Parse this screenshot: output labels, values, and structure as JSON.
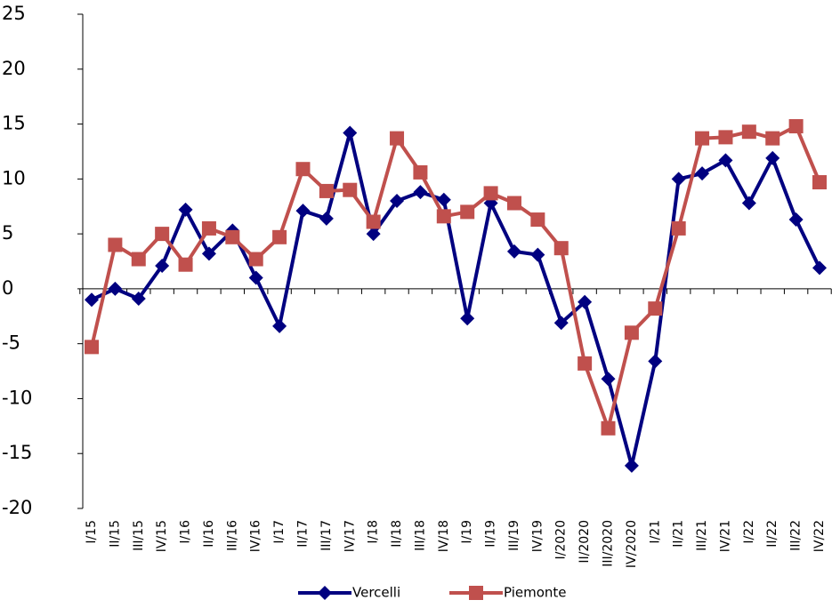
{
  "chart_data": {
    "type": "line",
    "categories": [
      "I/15",
      "II/15",
      "III/15",
      "IV/15",
      "I/16",
      "II/16",
      "III/16",
      "IV/16",
      "I/17",
      "II/17",
      "III/17",
      "IV/17",
      "I/18",
      "II/18",
      "III/18",
      "IV/18",
      "I/19",
      "II/19",
      "III/19",
      "IV/19",
      "I/2020",
      "II/2020",
      "III/2020",
      "IV/2020",
      "I/21",
      "II/21",
      "III/21",
      "IV/21",
      "I/22",
      "II/22",
      "III/22",
      "IV/22"
    ],
    "series": [
      {
        "name": "Vercelli",
        "color": "#000080",
        "marker": "diamond",
        "values": [
          -1.0,
          0.0,
          -0.9,
          2.1,
          7.2,
          3.2,
          5.3,
          1.0,
          -3.4,
          7.1,
          6.4,
          14.2,
          5.0,
          8.0,
          8.8,
          8.1,
          -2.7,
          7.8,
          3.4,
          3.1,
          -3.1,
          -1.2,
          -8.2,
          -16.1,
          -6.6,
          10.0,
          10.5,
          11.7,
          7.8,
          11.9,
          6.3,
          1.9
        ]
      },
      {
        "name": "Piemonte",
        "color": "#c0504d",
        "marker": "square",
        "values": [
          -5.3,
          4.0,
          2.7,
          5.0,
          2.2,
          5.5,
          4.7,
          2.7,
          4.7,
          10.9,
          8.9,
          9.0,
          6.1,
          13.7,
          10.6,
          6.6,
          7.0,
          8.7,
          7.8,
          6.3,
          3.7,
          -6.8,
          -12.7,
          -4.0,
          -1.8,
          5.5,
          13.7,
          13.8,
          14.3,
          13.7,
          14.8,
          9.7
        ]
      }
    ],
    "ylim": [
      -20,
      25
    ],
    "yticks": [
      -20,
      -15,
      -10,
      -5,
      0,
      5,
      10,
      15,
      20,
      25
    ],
    "legend": "bottom"
  }
}
